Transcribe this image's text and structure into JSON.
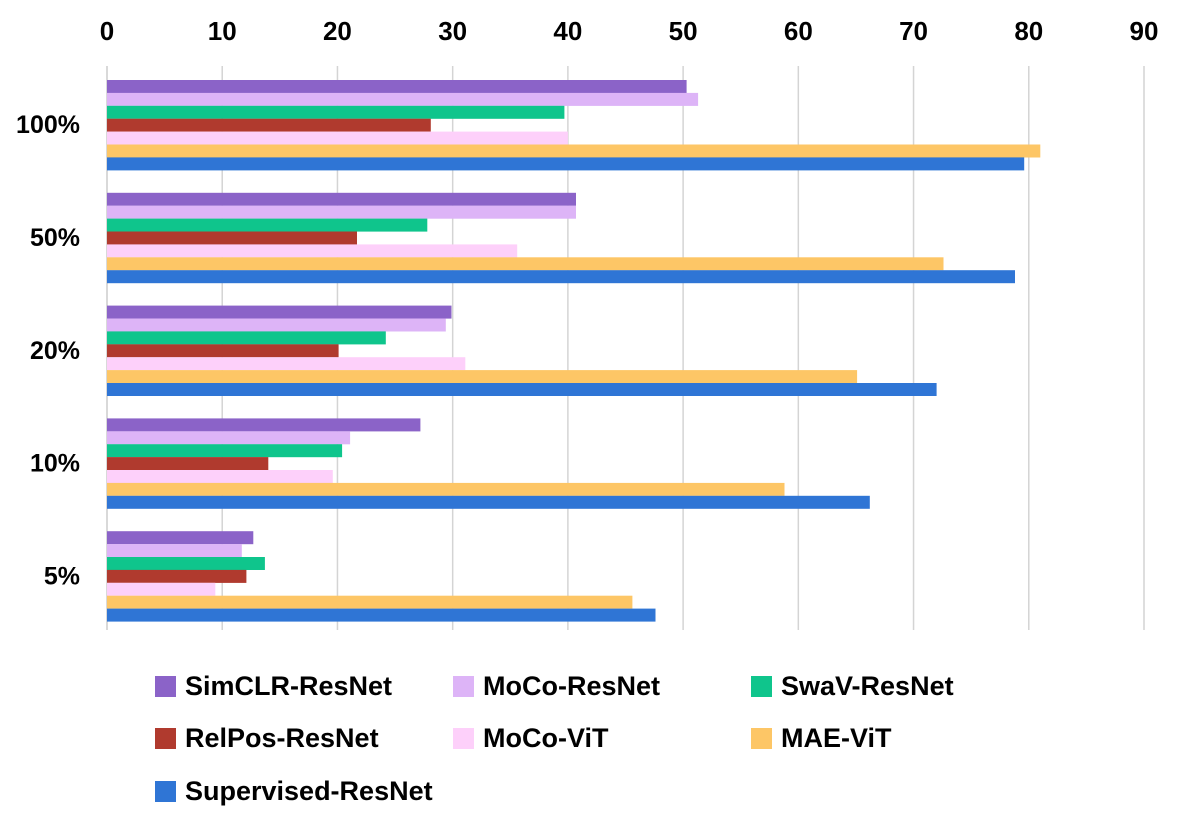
{
  "chart_data": {
    "type": "bar",
    "orientation": "horizontal",
    "categories": [
      "100%",
      "50%",
      "20%",
      "10%",
      "5%"
    ],
    "series": [
      {
        "name": "SimCLR-ResNet",
        "color": "#8B63C8",
        "values": [
          50.3,
          40.7,
          29.9,
          27.2,
          12.7
        ]
      },
      {
        "name": "MoCo-ResNet",
        "color": "#DDB4F7",
        "values": [
          51.3,
          40.7,
          29.4,
          21.1,
          11.7
        ]
      },
      {
        "name": "SwaV-ResNet",
        "color": "#0FC58C",
        "values": [
          39.7,
          27.8,
          24.2,
          20.4,
          13.7
        ]
      },
      {
        "name": "RelPos-ResNet",
        "color": "#B03A2E",
        "values": [
          28.1,
          21.7,
          20.1,
          14.0,
          12.1
        ]
      },
      {
        "name": "MoCo-ViT",
        "color": "#FDD0FA",
        "values": [
          40.0,
          35.6,
          31.1,
          19.6,
          9.4
        ]
      },
      {
        "name": "MAE-ViT",
        "color": "#FDC666",
        "values": [
          81.0,
          72.6,
          65.1,
          58.8,
          45.6
        ]
      },
      {
        "name": "Supervised-ResNet",
        "color": "#2F75D5",
        "values": [
          79.6,
          78.8,
          72.0,
          66.2,
          47.6
        ]
      }
    ],
    "xticks": [
      0,
      10,
      20,
      30,
      40,
      50,
      60,
      70,
      80,
      90
    ],
    "xlim": [
      0,
      90
    ],
    "x_axis_position": "top",
    "grid": "vertical",
    "legend_position": "bottom",
    "title": "",
    "xlabel": "",
    "ylabel": ""
  }
}
